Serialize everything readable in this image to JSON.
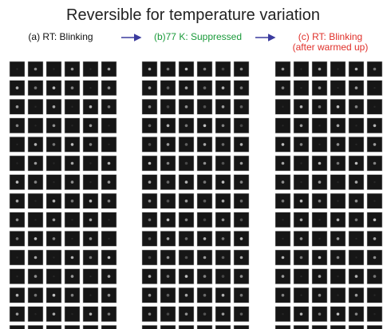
{
  "header": {
    "title": "Reversible for temperature variation"
  },
  "panels": [
    {
      "label": "(a) RT: Blinking"
    },
    {
      "label": "(b)77 K: Suppressed"
    },
    {
      "label": "(c) RT: Blinking",
      "sublabel": "(after warmed up)"
    }
  ]
}
